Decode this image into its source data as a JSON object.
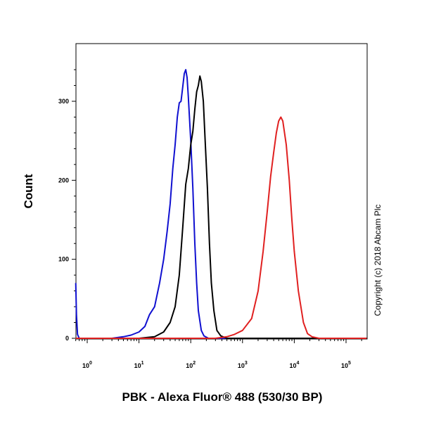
{
  "chart_data": {
    "type": "line",
    "xlabel": "PBK - Alexa Fluor® 488 (530/30 BP)",
    "ylabel": "Count",
    "x_scale": "log",
    "xlim": [
      0.6,
      250000
    ],
    "ylim": [
      0,
      350
    ],
    "x_ticks": [
      {
        "base": "10",
        "exp": "0",
        "value": 1
      },
      {
        "base": "10",
        "exp": "1",
        "value": 10
      },
      {
        "base": "10",
        "exp": "2",
        "value": 100
      },
      {
        "base": "10",
        "exp": "3",
        "value": 1000
      },
      {
        "base": "10",
        "exp": "4",
        "value": 10000
      },
      {
        "base": "10",
        "exp": "5",
        "value": 100000
      }
    ],
    "y_ticks": [
      "0",
      "100",
      "200",
      "300"
    ],
    "grid": false,
    "series": [
      {
        "color": "#1010d0",
        "points": [
          [
            0.6,
            70
          ],
          [
            0.62,
            30
          ],
          [
            0.65,
            5
          ],
          [
            0.7,
            0
          ],
          [
            1,
            0
          ],
          [
            3,
            0
          ],
          [
            5,
            2
          ],
          [
            7,
            4
          ],
          [
            10,
            8
          ],
          [
            13,
            15
          ],
          [
            16,
            30
          ],
          [
            20,
            40
          ],
          [
            25,
            70
          ],
          [
            30,
            100
          ],
          [
            35,
            135
          ],
          [
            40,
            170
          ],
          [
            45,
            215
          ],
          [
            50,
            245
          ],
          [
            55,
            280
          ],
          [
            60,
            298
          ],
          [
            65,
            300
          ],
          [
            70,
            318
          ],
          [
            75,
            335
          ],
          [
            80,
            340
          ],
          [
            85,
            330
          ],
          [
            90,
            305
          ],
          [
            100,
            250
          ],
          [
            110,
            190
          ],
          [
            120,
            120
          ],
          [
            130,
            70
          ],
          [
            140,
            35
          ],
          [
            160,
            10
          ],
          [
            180,
            3
          ],
          [
            220,
            0
          ],
          [
            300,
            0
          ],
          [
            1000,
            0
          ],
          [
            10000,
            0
          ],
          [
            250000,
            0
          ]
        ]
      },
      {
        "color": "#000000",
        "points": [
          [
            0.6,
            0
          ],
          [
            10,
            0
          ],
          [
            20,
            2
          ],
          [
            30,
            8
          ],
          [
            40,
            20
          ],
          [
            50,
            40
          ],
          [
            60,
            80
          ],
          [
            70,
            140
          ],
          [
            80,
            195
          ],
          [
            90,
            215
          ],
          [
            100,
            245
          ],
          [
            110,
            262
          ],
          [
            120,
            290
          ],
          [
            130,
            312
          ],
          [
            140,
            320
          ],
          [
            150,
            332
          ],
          [
            160,
            325
          ],
          [
            175,
            300
          ],
          [
            190,
            250
          ],
          [
            210,
            190
          ],
          [
            230,
            120
          ],
          [
            250,
            70
          ],
          [
            280,
            35
          ],
          [
            320,
            10
          ],
          [
            380,
            3
          ],
          [
            500,
            0
          ],
          [
            1000,
            0
          ],
          [
            250000,
            0
          ]
        ]
      },
      {
        "color": "#e02020",
        "points": [
          [
            0.6,
            0
          ],
          [
            300,
            0
          ],
          [
            500,
            2
          ],
          [
            700,
            5
          ],
          [
            1000,
            10
          ],
          [
            1500,
            25
          ],
          [
            2000,
            60
          ],
          [
            2500,
            110
          ],
          [
            3000,
            160
          ],
          [
            3500,
            205
          ],
          [
            4000,
            235
          ],
          [
            4500,
            260
          ],
          [
            5000,
            275
          ],
          [
            5500,
            280
          ],
          [
            6000,
            275
          ],
          [
            7000,
            245
          ],
          [
            8000,
            200
          ],
          [
            9000,
            150
          ],
          [
            10000,
            110
          ],
          [
            12000,
            60
          ],
          [
            15000,
            20
          ],
          [
            18000,
            6
          ],
          [
            22000,
            2
          ],
          [
            30000,
            0
          ],
          [
            250000,
            0
          ]
        ]
      }
    ]
  },
  "copyright": "Copyright (c) 2018 Abcam Plc"
}
